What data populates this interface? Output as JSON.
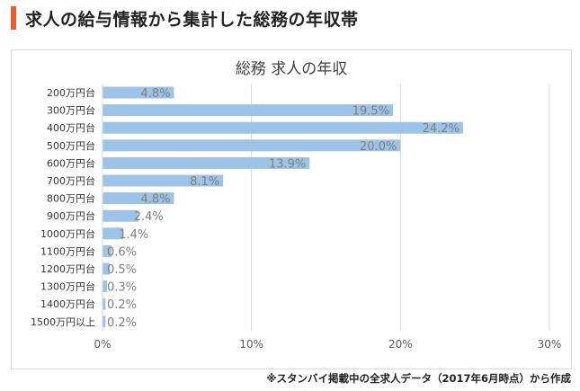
{
  "page": {
    "heading": "求人の給与情報から集計した総務の年収帯",
    "source_note": "※スタンバイ掲載中の全求人データ（2017年6月時点）から作成"
  },
  "colors": {
    "accent": "#f05a28",
    "bar": "#9dc3e6",
    "data_label": "#7f7f7f",
    "gridline": "#d9d9d9",
    "axis_text": "#595959"
  },
  "chart_data": {
    "type": "bar",
    "orientation": "horizontal",
    "title": "総務 求人の年収",
    "categories": [
      "200万円台",
      "300万円台",
      "400万円台",
      "500万円台",
      "600万円台",
      "700万円台",
      "800万円台",
      "900万円台",
      "1000万円台",
      "1100万円台",
      "1200万円台",
      "1300万円台",
      "1400万円台",
      "1500万円以上"
    ],
    "values": [
      4.8,
      19.5,
      24.2,
      20.0,
      13.9,
      8.1,
      4.8,
      2.4,
      1.4,
      0.6,
      0.5,
      0.3,
      0.2,
      0.2
    ],
    "data_labels": [
      "4.8%",
      "19.5%",
      "24.2%",
      "20.0%",
      "13.9%",
      "8.1%",
      "4.8%",
      "2.4%",
      "1.4%",
      "0.6%",
      "0.5%",
      "0.3%",
      "0.2%",
      "0.2%"
    ],
    "xlim": [
      0,
      30
    ],
    "x_ticks": [
      0,
      10,
      20,
      30
    ],
    "x_tick_labels": [
      "0%",
      "10%",
      "20%",
      "30%"
    ],
    "xlabel": "",
    "ylabel": "",
    "grid": true,
    "legend": "none"
  }
}
